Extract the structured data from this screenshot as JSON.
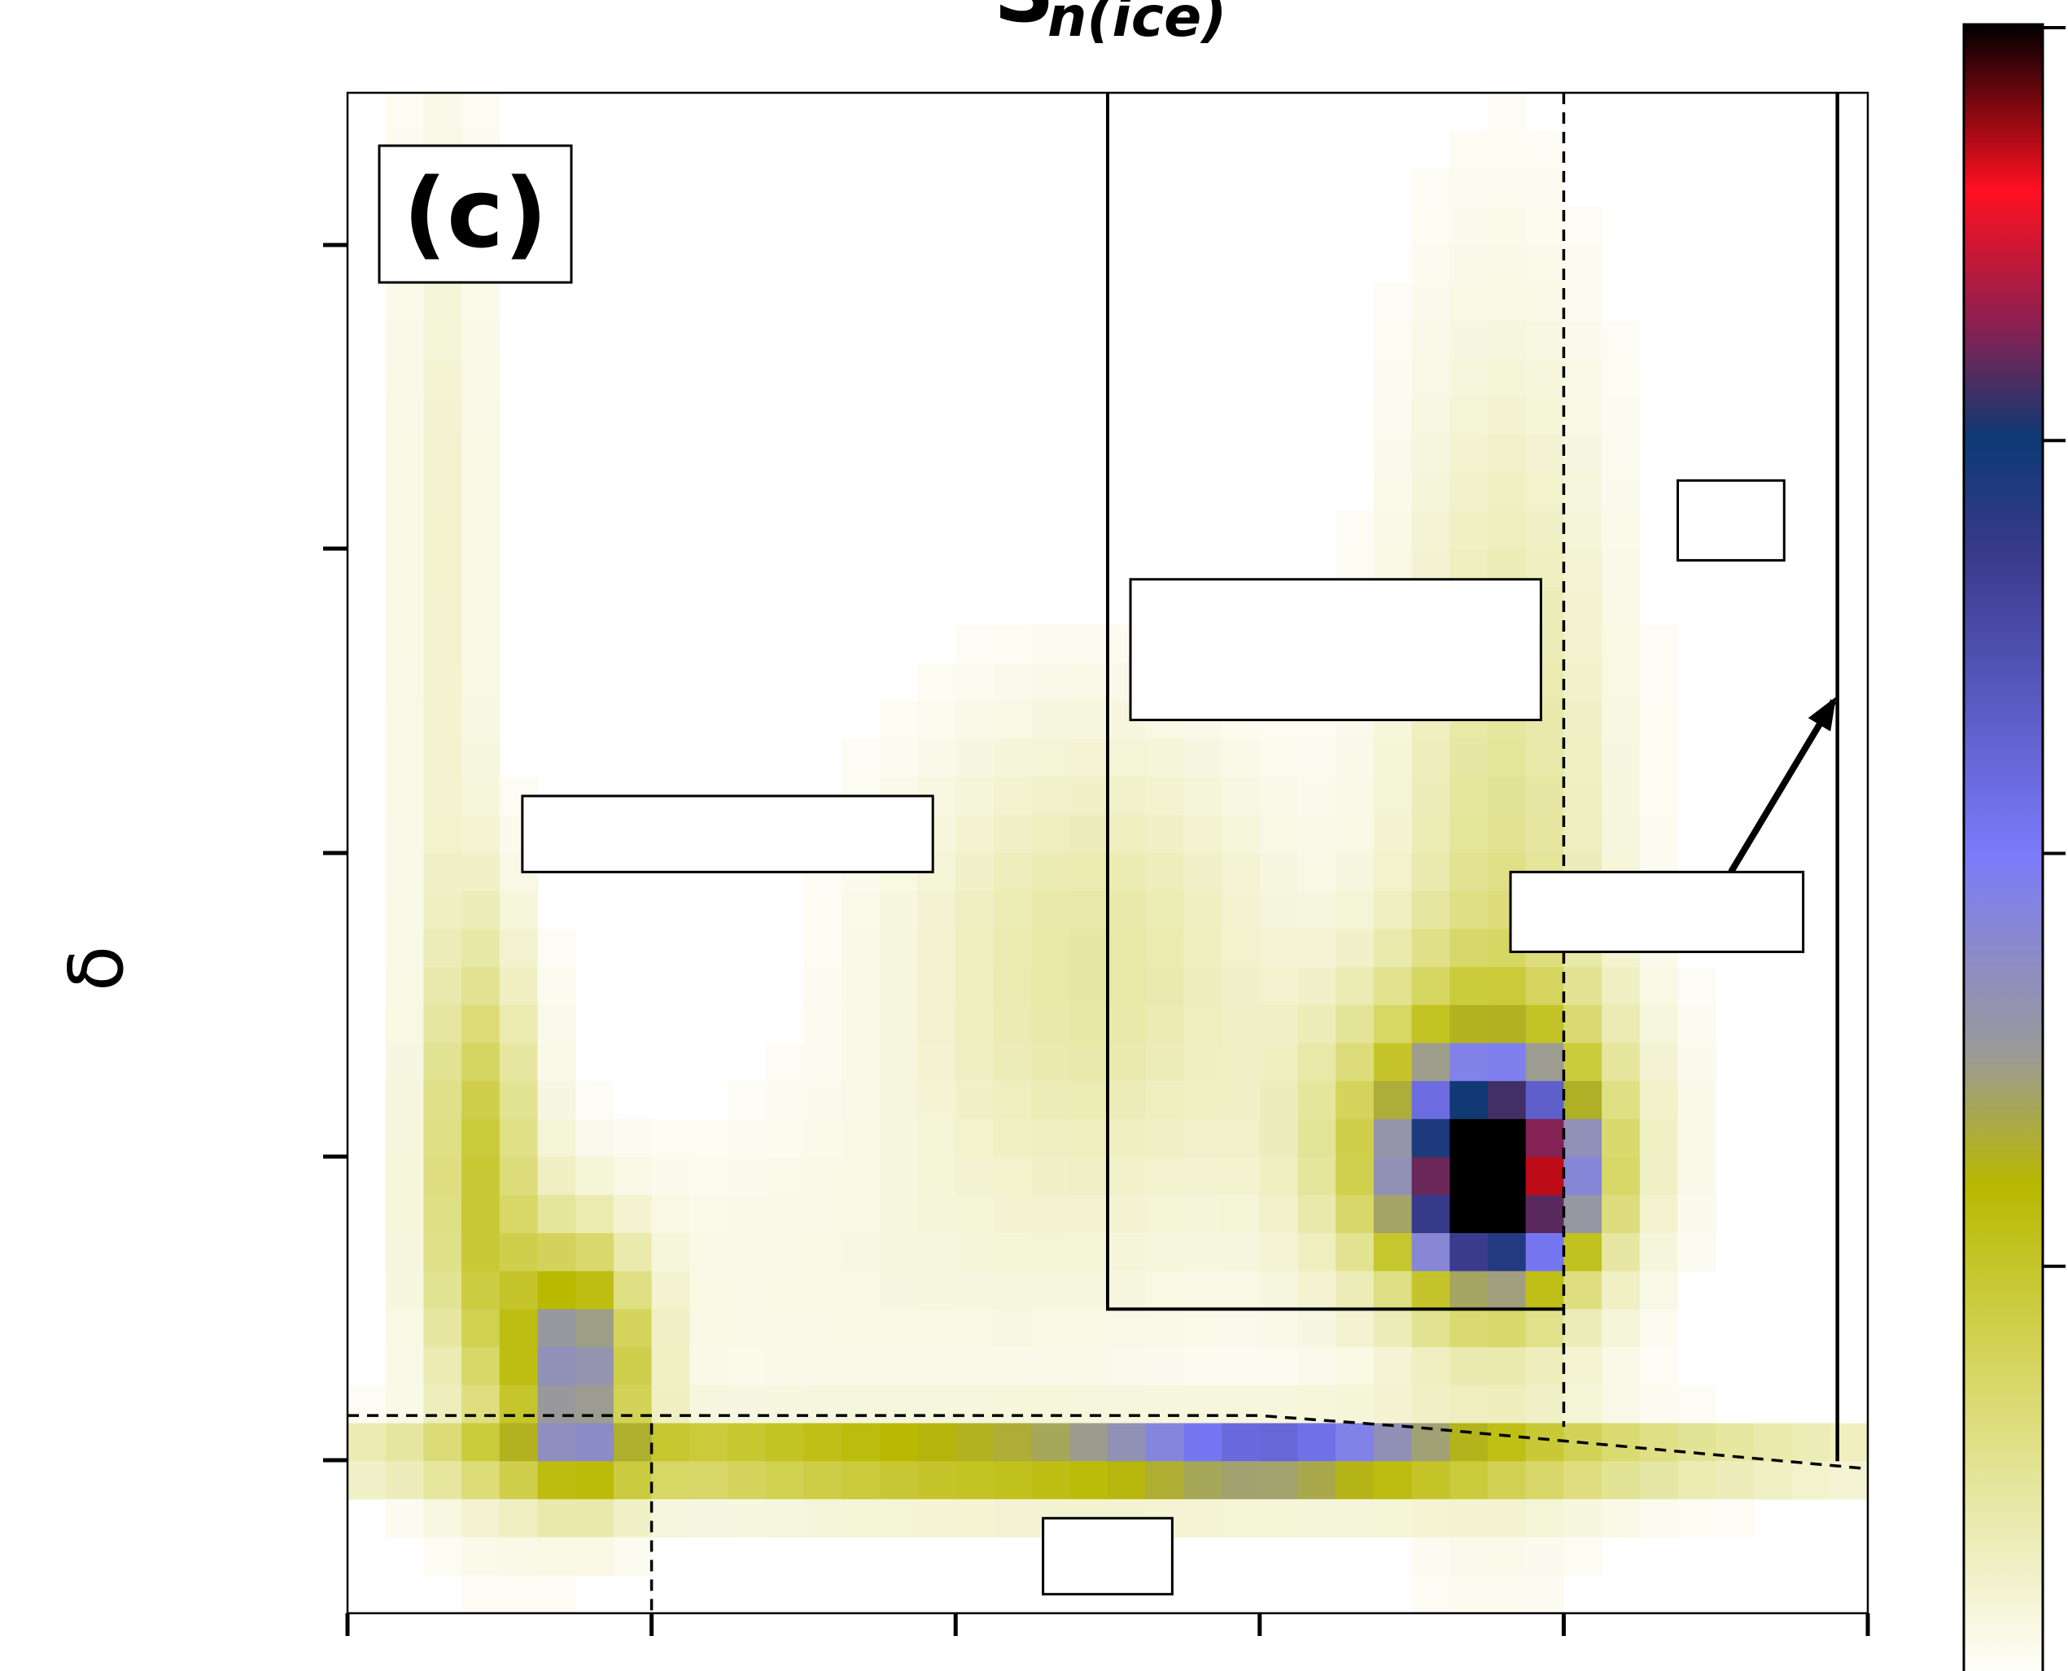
{
  "chart_data": {
    "type": "heatmap",
    "title": "S",
    "title_subscript": "n(ice)",
    "panel_label": "(c)",
    "xlabel": "",
    "ylabel": "δ",
    "x_ticks": 6,
    "y_ticks": 5,
    "colorbar_ticks": 5,
    "grid": false,
    "colormap": [
      "#ffffff",
      "#d8d86a",
      "#b8b800",
      "#9a9a9a",
      "#7b7bfa",
      "#3a3a8c",
      "#0c3a74",
      "#8c2050",
      "#ff1020",
      "#000000"
    ],
    "colormap_stops": [
      0.0,
      0.18,
      0.3,
      0.38,
      0.5,
      0.68,
      0.75,
      0.82,
      0.9,
      1.0
    ],
    "grid_size": {
      "cols": 40,
      "rows": 40
    },
    "density_blobs": [
      {
        "x": 30.2,
        "y": 28.6,
        "sx": 1.4,
        "sy": 1.6,
        "amp": 0.95
      },
      {
        "x": 29.5,
        "y": 27.6,
        "sx": 2.6,
        "sy": 2.8,
        "amp": 0.32
      },
      {
        "x": 30.4,
        "y": 21.0,
        "sx": 2.0,
        "sy": 9.5,
        "amp": 0.13
      },
      {
        "x": 19.5,
        "y": 35.8,
        "sx": 12.0,
        "sy": 0.55,
        "amp": 0.35
      },
      {
        "x": 24.5,
        "y": 35.8,
        "sx": 2.8,
        "sy": 0.5,
        "amp": 0.32
      },
      {
        "x": 6.0,
        "y": 33.5,
        "sx": 1.2,
        "sy": 2.2,
        "amp": 0.42
      },
      {
        "x": 3.5,
        "y": 28.5,
        "sx": 1.0,
        "sy": 4.5,
        "amp": 0.22
      },
      {
        "x": 2.5,
        "y": 12.0,
        "sx": 0.9,
        "sy": 9.0,
        "amp": 0.06
      },
      {
        "x": 13.0,
        "y": 31.5,
        "sx": 8.0,
        "sy": 3.5,
        "amp": 0.03
      },
      {
        "x": 19.5,
        "y": 23.0,
        "sx": 3.5,
        "sy": 4.5,
        "amp": 0.11
      },
      {
        "x": 19.5,
        "y": 36.8,
        "sx": 10.0,
        "sy": 0.5,
        "amp": 0.12
      }
    ],
    "overlay_solid_boxes": [
      {
        "x0": 20,
        "y0": 0,
        "x1": 32,
        "y1": 32,
        "open_top": true
      }
    ],
    "overlay_dashed_vertical": [
      {
        "x": 32,
        "y0": 0,
        "y1": 35.1
      },
      {
        "x": 8,
        "y0": 35,
        "y1": 40
      }
    ],
    "overlay_dashed_curve": [
      [
        0,
        34.8
      ],
      [
        24,
        34.8
      ],
      [
        28,
        35.1
      ],
      [
        40,
        36.2
      ]
    ],
    "overlay_solid_vertical": [
      {
        "x": 39.2,
        "y0": 0,
        "y1": 36.0
      }
    ],
    "arrow": {
      "from": [
        36.4,
        20.5
      ],
      "to": [
        39.1,
        16.0
      ]
    },
    "label_boxes": [
      {
        "x0": 4.6,
        "y0": 18.5,
        "x1": 15.4,
        "y1": 20.5
      },
      {
        "x0": 20.6,
        "y0": 12.8,
        "x1": 31.4,
        "y1": 16.5
      },
      {
        "x0": 35.0,
        "y0": 10.2,
        "x1": 37.8,
        "y1": 12.3
      },
      {
        "x0": 30.6,
        "y0": 20.5,
        "x1": 38.3,
        "y1": 22.6
      },
      {
        "x0": 18.3,
        "y0": 37.5,
        "x1": 21.7,
        "y1": 39.5
      }
    ]
  }
}
